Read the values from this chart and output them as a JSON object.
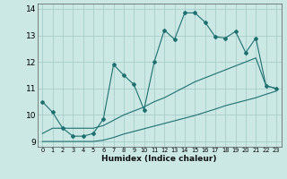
{
  "xlabel": "Humidex (Indice chaleur)",
  "xlim": [
    -0.5,
    23.5
  ],
  "ylim": [
    8.8,
    14.2
  ],
  "xtick_labels": [
    "0",
    "1",
    "2",
    "3",
    "4",
    "5",
    "6",
    "7",
    "8",
    "9",
    "10",
    "11",
    "12",
    "13",
    "14",
    "15",
    "16",
    "17",
    "18",
    "19",
    "20",
    "21",
    "22",
    "23"
  ],
  "ytick_vals": [
    9,
    10,
    11,
    12,
    13,
    14
  ],
  "bg_color": "#cbe8e5",
  "grid_color": "#a8ceca",
  "line_color": "#1e7070",
  "hours": [
    0,
    1,
    2,
    3,
    4,
    5,
    6,
    7,
    8,
    9,
    10,
    11,
    12,
    13,
    14,
    15,
    16,
    17,
    18,
    19,
    20,
    21,
    22,
    23
  ],
  "main_line": [
    10.5,
    10.1,
    9.5,
    9.2,
    9.2,
    9.3,
    9.85,
    11.9,
    11.5,
    11.15,
    10.2,
    12.0,
    13.2,
    12.85,
    13.85,
    13.85,
    13.5,
    12.95,
    12.9,
    13.15,
    12.35,
    12.9,
    11.1,
    11.0
  ],
  "mid_line": [
    9.3,
    9.5,
    9.5,
    9.5,
    9.5,
    9.5,
    9.6,
    9.8,
    10.0,
    10.15,
    10.3,
    10.5,
    10.65,
    10.85,
    11.05,
    11.25,
    11.4,
    11.55,
    11.7,
    11.85,
    12.0,
    12.15,
    11.1,
    11.0
  ],
  "low_line": [
    9.0,
    9.0,
    9.0,
    9.0,
    9.0,
    9.0,
    9.05,
    9.15,
    9.28,
    9.38,
    9.48,
    9.58,
    9.68,
    9.78,
    9.88,
    9.98,
    10.1,
    10.22,
    10.35,
    10.45,
    10.55,
    10.65,
    10.78,
    10.9
  ]
}
